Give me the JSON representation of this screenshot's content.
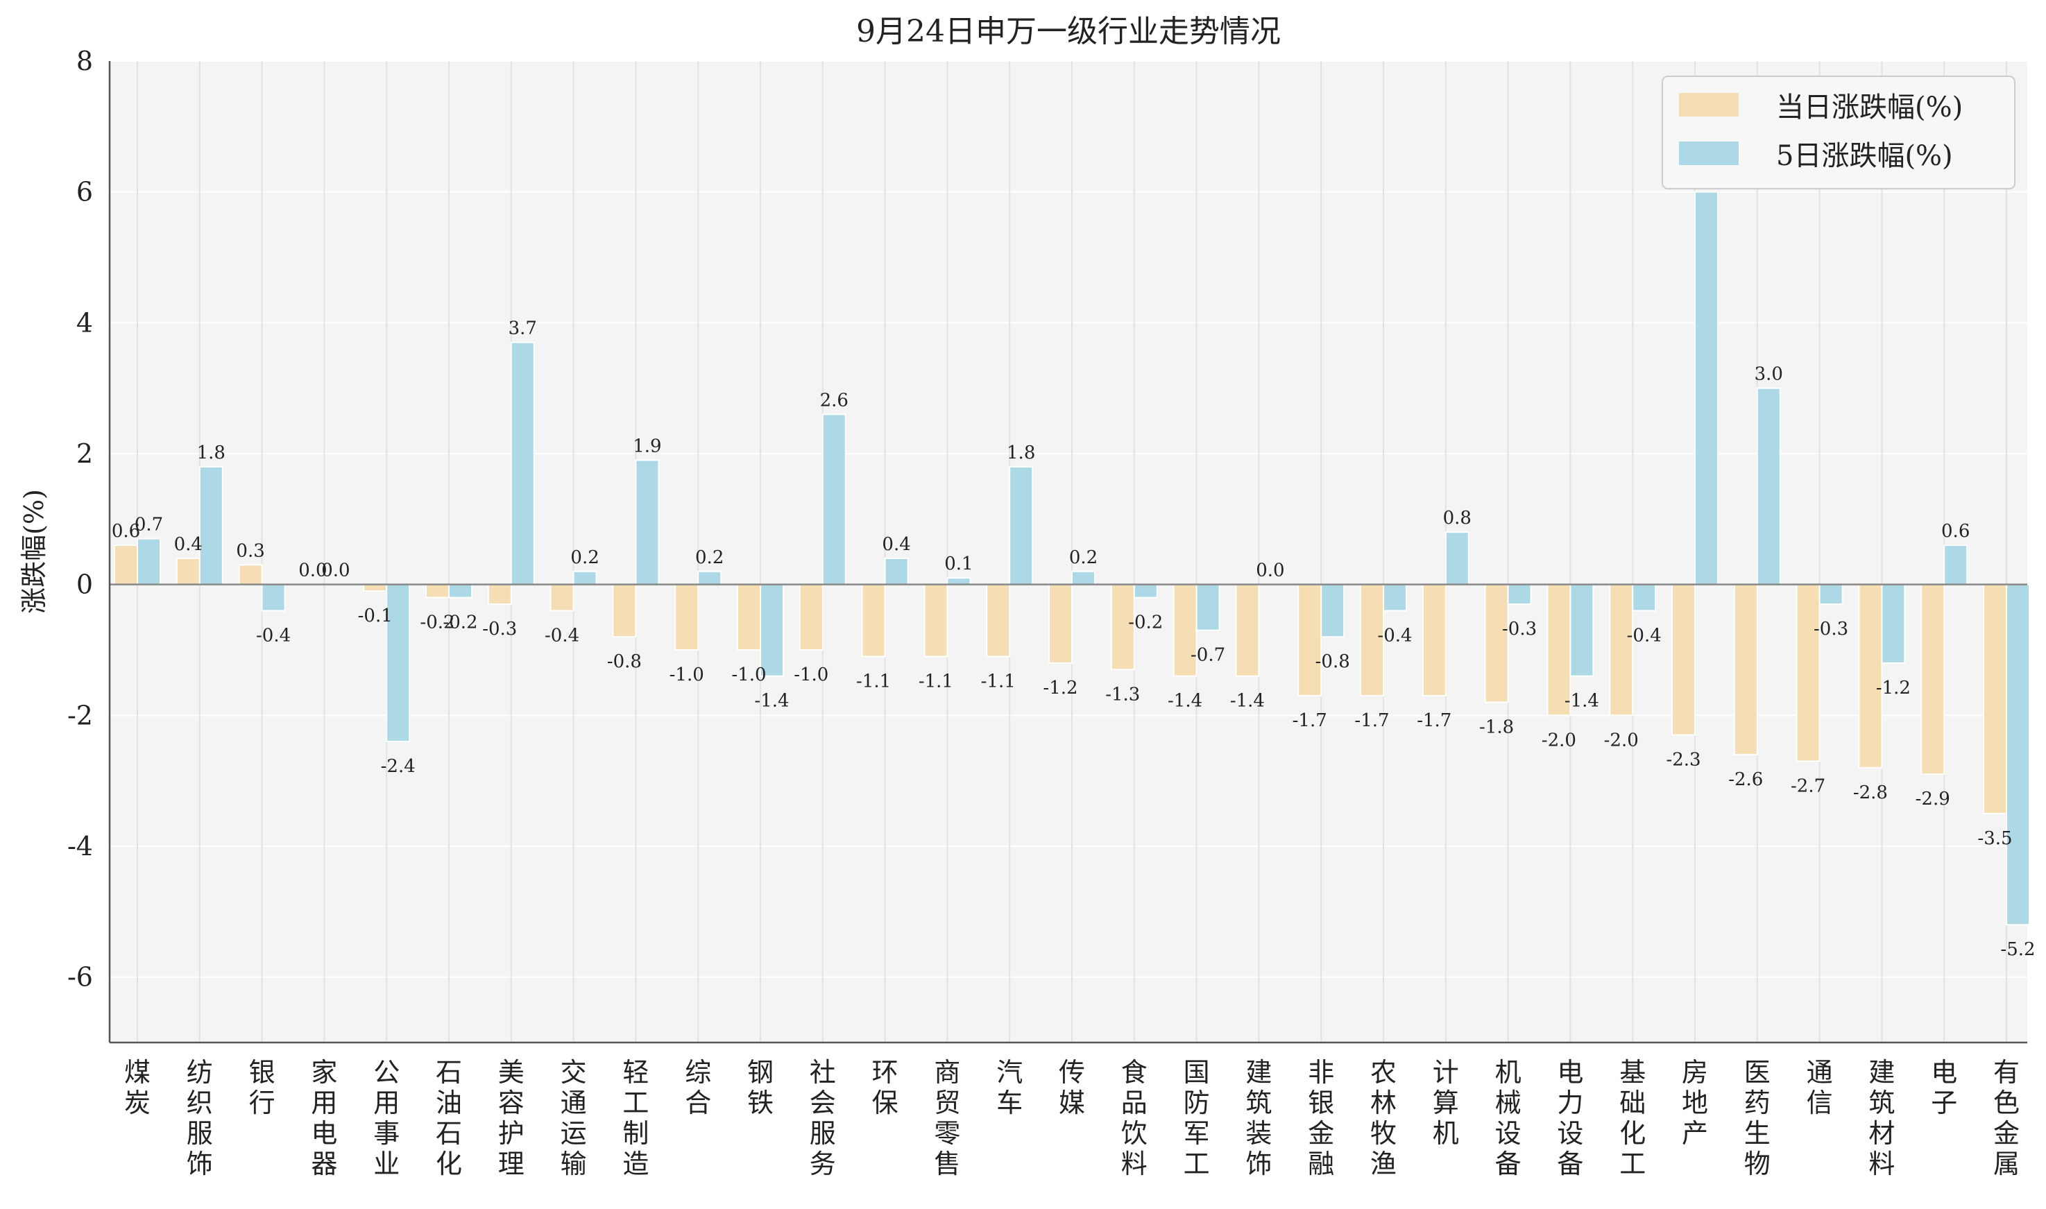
{
  "chart_data": {
    "type": "bar",
    "title": "9月24日申万一级行业走势情况",
    "xlabel": "",
    "ylabel": "涨跌幅(%)",
    "ylim": [
      -7,
      8
    ],
    "yticks": [
      -6,
      -4,
      -2,
      0,
      2,
      4,
      6,
      8
    ],
    "grid": true,
    "legend_position": "top-right",
    "categories": [
      "煤炭",
      "纺织服饰",
      "银行",
      "家用电器",
      "公用事业",
      "石油石化",
      "美容护理",
      "交通运输",
      "轻工制造",
      "综合",
      "钢铁",
      "社会服务",
      "环保",
      "商贸零售",
      "汽车",
      "传媒",
      "食品饮料",
      "国防军工",
      "建筑装饰",
      "非银金融",
      "农林牧渔",
      "计算机",
      "机械设备",
      "电力设备",
      "基础化工",
      "房地产",
      "医药生物",
      "通信",
      "建筑材料",
      "电子",
      "有色金属"
    ],
    "series": [
      {
        "name": "当日涨跌幅(%)",
        "color": "#f5deb3",
        "values": [
          0.6,
          0.4,
          0.3,
          0.0,
          -0.1,
          -0.2,
          -0.3,
          -0.4,
          -0.8,
          -1.0,
          -1.0,
          -1.0,
          -1.1,
          -1.1,
          -1.1,
          -1.2,
          -1.3,
          -1.4,
          -1.4,
          -1.7,
          -1.7,
          -1.7,
          -1.8,
          -2.0,
          -2.0,
          -2.3,
          -2.6,
          -2.7,
          -2.8,
          -2.9,
          -3.5
        ]
      },
      {
        "name": "5日涨跌幅(%)",
        "color": "#add8e6",
        "values": [
          0.7,
          1.8,
          -0.4,
          0.0,
          -2.4,
          -0.2,
          3.7,
          0.2,
          1.9,
          0.2,
          -1.4,
          2.6,
          0.4,
          0.1,
          1.8,
          0.2,
          -0.2,
          -0.7,
          0.0,
          -0.8,
          -0.4,
          0.8,
          -0.3,
          -1.4,
          -0.4,
          6.0,
          3.0,
          -0.3,
          -1.2,
          0.6,
          -5.2
        ]
      }
    ],
    "value_labels": [
      [
        "0.6",
        "0.4",
        "0.3",
        "0.0",
        "-0.1",
        "-0.2",
        "-0.3",
        "-0.4",
        "-0.8",
        "-1.0",
        "-1.0",
        "-1.0",
        "-1.1",
        "-1.1",
        "-1.1",
        "-1.2",
        "-1.3",
        "-1.4",
        "-1.4",
        "-1.7",
        "-1.7",
        "-1.7",
        "-1.8",
        "-2.0",
        "-2.0",
        "-2.3",
        "-2.6",
        "-2.7",
        "-2.8",
        "-2.9",
        "-3.5"
      ],
      [
        "0.7",
        "1.8",
        "-0.4",
        "0.0",
        "-2.4",
        "-0.2",
        "3.7",
        "0.2",
        "1.9",
        "0.2",
        "-1.4",
        "2.6",
        "0.4",
        "0.1",
        "1.8",
        "0.2",
        "-0.2",
        "-0.7",
        "0.0",
        "-0.8",
        "-0.4",
        "0.8",
        "-0.3",
        "-1.4",
        "-0.4",
        "6.0",
        "3.0",
        "-0.3",
        "-1.2",
        "0.6",
        "-5.2"
      ]
    ]
  }
}
